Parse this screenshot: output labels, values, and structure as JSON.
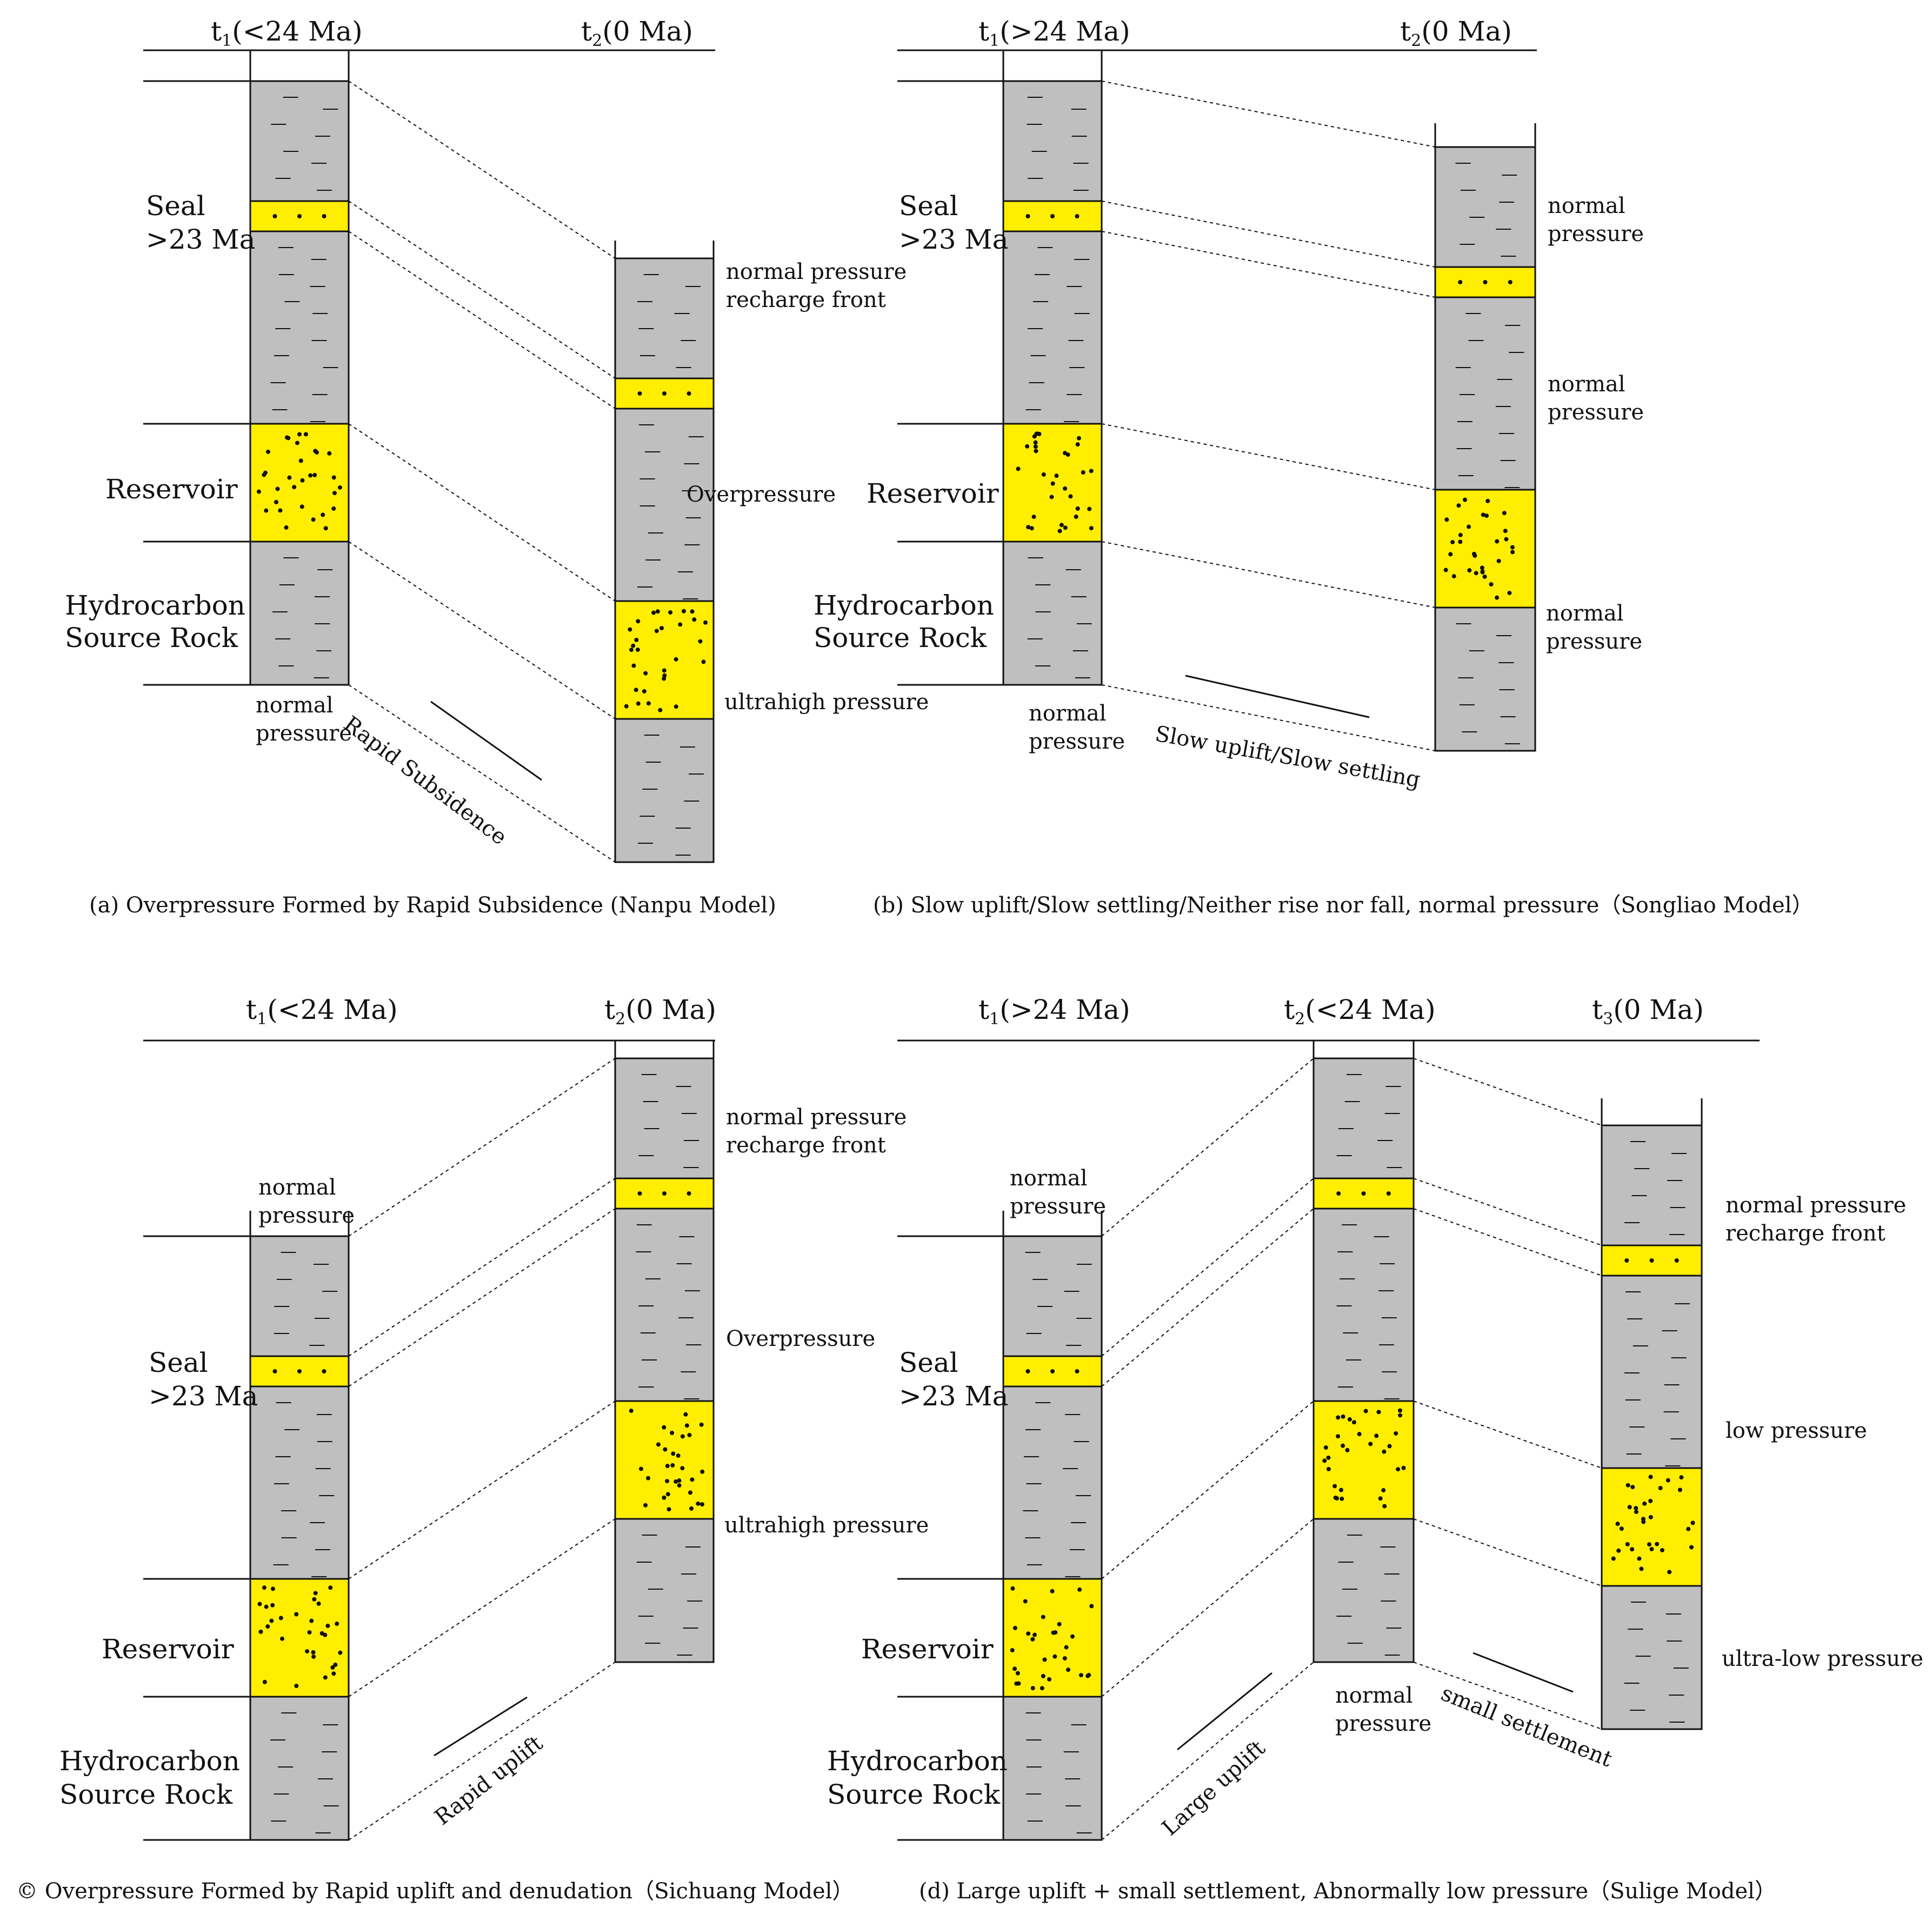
{
  "colors": {
    "shale": "#bfbfbf",
    "sand": "#ffee00",
    "line": "#111111"
  },
  "panel_a": {
    "t1": {
      "sym": "t",
      "sub": "1",
      "val": "(<24 Ma)"
    },
    "t2": {
      "sym": "t",
      "sub": "2",
      "val": "(0 Ma)"
    },
    "labels": {
      "seal": [
        "Seal",
        ">23 Ma"
      ],
      "reservoir": "Reservoir",
      "source": [
        "Hydrocarbon",
        "Source Rock"
      ],
      "p1": [
        "normal pressure",
        "recharge front"
      ],
      "p2": "Overpressure",
      "p3": "ultrahigh pressure",
      "bottom": [
        "normal",
        "pressure"
      ]
    },
    "trend": "Rapid Subsidence",
    "caption": "(a) Overpressure Formed by Rapid Subsidence (Nanpu Model)"
  },
  "panel_b": {
    "t1": {
      "sym": "t",
      "sub": "1",
      "val": "(>24 Ma)"
    },
    "t2": {
      "sym": "t",
      "sub": "2",
      "val": "(0 Ma)"
    },
    "labels": {
      "seal": [
        "Seal",
        ">23 Ma"
      ],
      "reservoir": "Reservoir",
      "source": [
        "Hydrocarbon",
        "Source Rock"
      ],
      "p1": [
        "normal",
        "pressure"
      ],
      "p2": [
        "normal",
        "pressure"
      ],
      "p3": [
        "normal",
        "pressure"
      ],
      "bottom": [
        "normal",
        "pressure"
      ]
    },
    "trend": "Slow uplift/Slow settling",
    "caption": "(b) Slow uplift/Slow settling/Neither rise nor fall, normal pressure（Songliao Model）"
  },
  "panel_c": {
    "t1": {
      "sym": "t",
      "sub": "1",
      "val": "(<24 Ma)"
    },
    "t2": {
      "sym": "t",
      "sub": "2",
      "val": "(0 Ma)"
    },
    "labels": {
      "top": [
        "normal",
        "pressure"
      ],
      "seal": [
        "Seal",
        ">23 Ma"
      ],
      "reservoir": "Reservoir",
      "source": [
        "Hydrocarbon",
        "Source Rock"
      ],
      "p1": [
        "normal pressure",
        "recharge front"
      ],
      "p2": "Overpressure",
      "p3": "ultrahigh pressure"
    },
    "trend": "Rapid uplift",
    "caption": "© Overpressure Formed by Rapid uplift and denudation（Sichuang  Model）"
  },
  "panel_d": {
    "t1": {
      "sym": "t",
      "sub": "1",
      "val": "(>24 Ma)"
    },
    "t2": {
      "sym": "t",
      "sub": "2",
      "val": "(<24 Ma)"
    },
    "t3": {
      "sym": "t",
      "sub": "3",
      "val": "(0 Ma)"
    },
    "labels": {
      "top": [
        "normal",
        "pressure"
      ],
      "seal": [
        "Seal",
        ">23 Ma"
      ],
      "reservoir": "Reservoir",
      "source": [
        "Hydrocarbon",
        "Source Rock"
      ],
      "mid": [
        "normal",
        "pressure"
      ],
      "p1": [
        "normal pressure",
        "recharge front"
      ],
      "p2": "low pressure",
      "p3": "ultra-low pressure"
    },
    "trend1": "Large uplift",
    "trend2": "small settlement",
    "caption": "(d) Large uplift + small settlement,  Abnormally low pressure（Sulige Model）"
  }
}
